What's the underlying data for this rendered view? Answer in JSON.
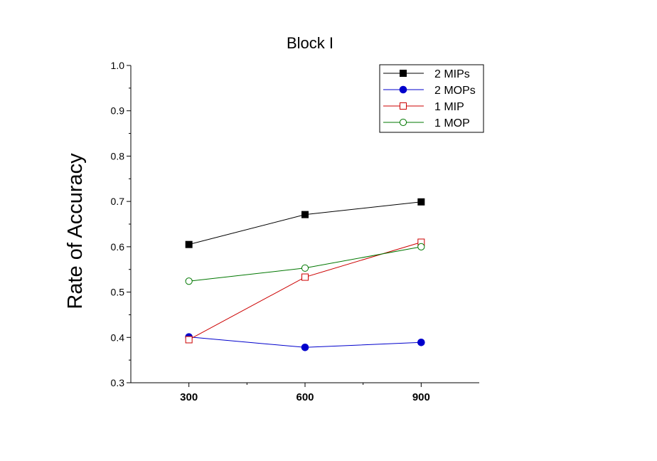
{
  "chart_data": {
    "type": "line",
    "title": "Block I",
    "xlabel": "",
    "ylabel": "Rate of Accuracy",
    "x": [
      300,
      600,
      900
    ],
    "x_tick_labels": [
      "300",
      "600",
      "900"
    ],
    "xlim": [
      150,
      1050
    ],
    "ylim": [
      0.3,
      1.0
    ],
    "y_ticks": [
      0.3,
      0.4,
      0.5,
      0.6,
      0.7,
      0.8,
      0.9,
      1.0
    ],
    "y_tick_labels": [
      "0.3",
      "0.4",
      "0.5",
      "0.6",
      "0.7",
      "0.8",
      "0.9",
      "1.0"
    ],
    "grid": false,
    "legend_position": "top-right",
    "series": [
      {
        "name": "2 MIPs",
        "values": [
          0.605,
          0.671,
          0.699
        ],
        "color": "#000000",
        "marker": "filled-square"
      },
      {
        "name": "2 MOPs",
        "values": [
          0.401,
          0.378,
          0.389
        ],
        "color": "#0000cc",
        "marker": "filled-circle"
      },
      {
        "name": "1 MIP",
        "values": [
          0.395,
          0.533,
          0.61
        ],
        "color": "#cc0000",
        "marker": "open-square"
      },
      {
        "name": "1 MOP",
        "values": [
          0.524,
          0.553,
          0.6
        ],
        "color": "#007700",
        "marker": "open-circle"
      }
    ]
  }
}
